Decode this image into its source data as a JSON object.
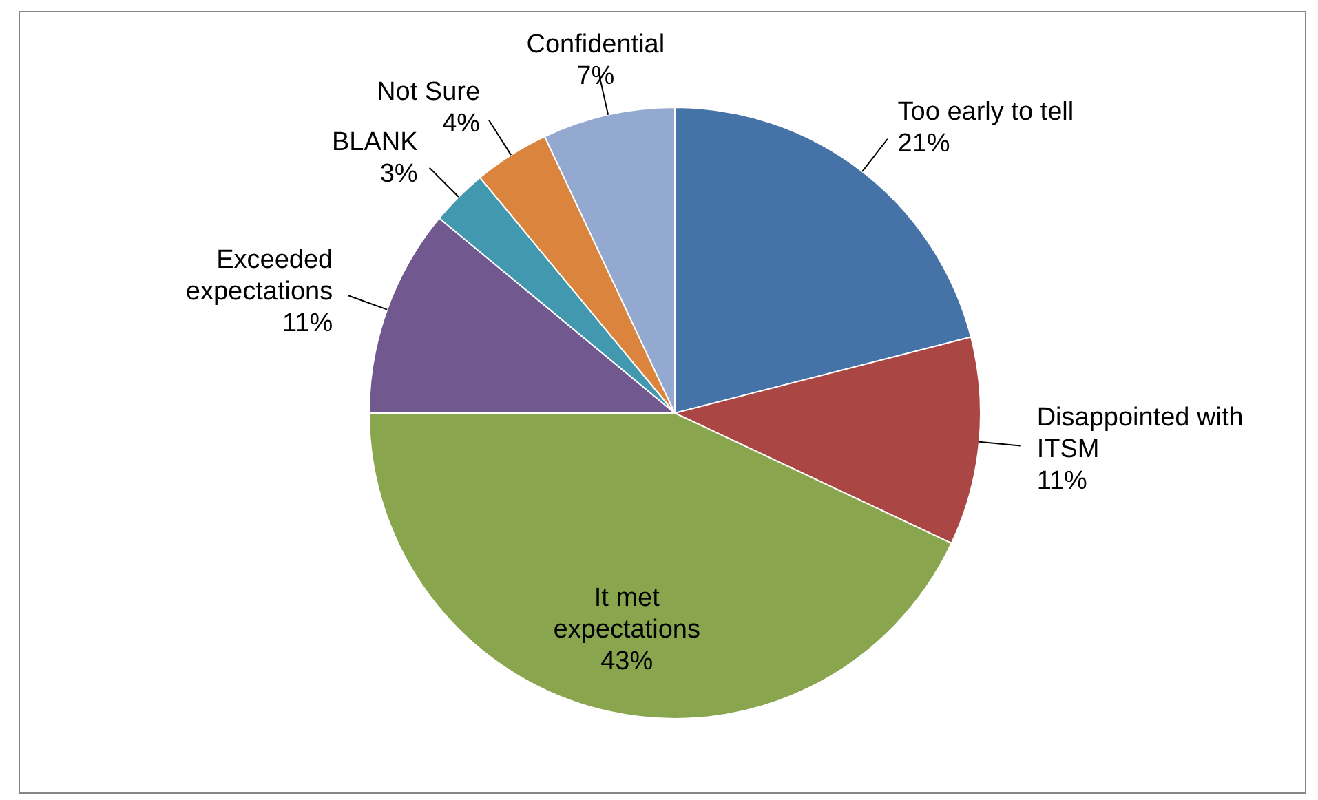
{
  "chart_data": {
    "type": "pie",
    "categories": [
      "Too early to tell",
      "Disappointed with ITSM",
      "It met expectations",
      "Exceeded expectations",
      "BLANK",
      "Not Sure",
      "Confidential"
    ],
    "values": [
      21,
      11,
      43,
      11,
      3,
      4,
      7
    ],
    "value_labels": [
      "21%",
      "11%",
      "43%",
      "11%",
      "3%",
      "4%",
      "7%"
    ],
    "colors": [
      "#4572a7",
      "#aa4643",
      "#89a54e",
      "#71588f",
      "#4198af",
      "#db843d",
      "#93a9cf"
    ]
  }
}
